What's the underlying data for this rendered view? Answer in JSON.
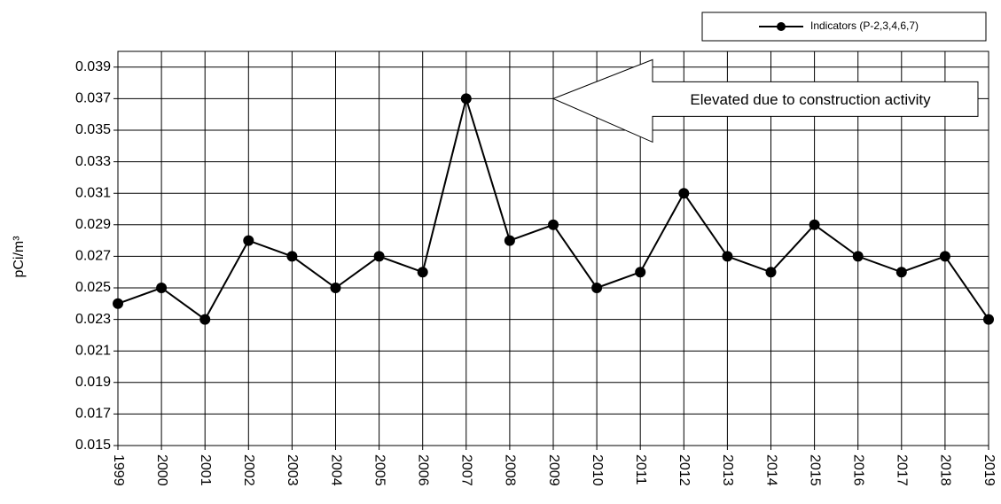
{
  "chart_data": {
    "type": "line",
    "y_label": "pCi/m³",
    "categories": [
      "1999",
      "2000",
      "2001",
      "2002",
      "2003",
      "2004",
      "2005",
      "2006",
      "2007",
      "2008",
      "2009",
      "2010",
      "2011",
      "2012",
      "2013",
      "2014",
      "2015",
      "2016",
      "2017",
      "2018",
      "2019"
    ],
    "series": [
      {
        "name": "Indicators (P-2,3,4,6,7)",
        "color": "#000000",
        "values": [
          0.024,
          0.025,
          0.023,
          0.028,
          0.027,
          0.025,
          0.027,
          0.026,
          0.037,
          0.028,
          0.029,
          0.025,
          0.026,
          0.031,
          0.027,
          0.026,
          0.029,
          0.027,
          0.026,
          0.027,
          0.023
        ]
      }
    ],
    "ylim": [
      0.015,
      0.04
    ],
    "yticks": [
      0.015,
      0.017,
      0.019,
      0.021,
      0.023,
      0.025,
      0.027,
      0.029,
      0.031,
      0.033,
      0.035,
      0.037,
      0.039
    ],
    "grid": true,
    "legend": "top-right",
    "annotation": "Elevated due to construction activity"
  }
}
